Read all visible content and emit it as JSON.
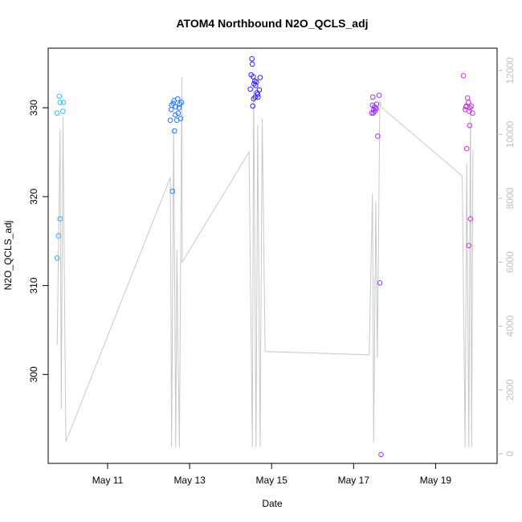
{
  "chart_data": {
    "type": "scatter",
    "title": "ATOM4 Northbound N2O_QCLS_adj",
    "xlabel": "Date",
    "ylabel": "N2O_QCLS_adj",
    "x_ticks": [
      "May 11",
      "May 13",
      "May 15",
      "May 17",
      "May 19"
    ],
    "x_tick_days": [
      11,
      13,
      15,
      17,
      19
    ],
    "xlim_days": [
      9.55,
      20.5
    ],
    "ylim": [
      290,
      336.7
    ],
    "y_ticks": [
      300,
      310,
      320,
      330
    ],
    "y2lim": [
      -300,
      12700
    ],
    "y2_ticks": [
      0,
      2000,
      4000,
      6000,
      8000,
      10000,
      12000
    ],
    "y2_series": {
      "name": "",
      "color": "#c8c8c8",
      "points": [
        [
          9.77,
          3400
        ],
        [
          9.84,
          10150
        ],
        [
          9.87,
          1400
        ],
        [
          9.91,
          10550
        ],
        [
          9.98,
          380
        ],
        [
          12.53,
          8650
        ],
        [
          12.56,
          210
        ],
        [
          12.61,
          10150
        ],
        [
          12.64,
          4700
        ],
        [
          12.66,
          200
        ],
        [
          12.69,
          6400
        ],
        [
          12.72,
          3000
        ],
        [
          12.75,
          200
        ],
        [
          12.79,
          7700
        ],
        [
          12.81,
          11800
        ],
        [
          12.82,
          6000
        ],
        [
          14.45,
          9450
        ],
        [
          14.53,
          200
        ],
        [
          14.56,
          11450
        ],
        [
          14.62,
          200
        ],
        [
          14.66,
          10300
        ],
        [
          14.72,
          200
        ],
        [
          14.77,
          10500
        ],
        [
          14.84,
          3200
        ],
        [
          17.38,
          3100
        ],
        [
          17.46,
          8150
        ],
        [
          17.49,
          350
        ],
        [
          17.54,
          7900
        ],
        [
          17.58,
          3000
        ],
        [
          17.64,
          11050
        ],
        [
          17.68,
          10850
        ],
        [
          19.65,
          8700
        ],
        [
          19.72,
          200
        ],
        [
          19.76,
          9100
        ],
        [
          19.81,
          200
        ],
        [
          19.85,
          11100
        ],
        [
          19.88,
          200
        ],
        [
          19.91,
          9500
        ]
      ]
    },
    "scatter_points": [
      {
        "x": 9.77,
        "y": 329.4,
        "color": "#33bbff"
      },
      {
        "x": 9.84,
        "y": 330.6,
        "color": "#33bbff"
      },
      {
        "x": 9.82,
        "y": 331.3,
        "color": "#33bbff"
      },
      {
        "x": 9.92,
        "y": 330.6,
        "color": "#33bbff"
      },
      {
        "x": 9.91,
        "y": 329.6,
        "color": "#33bbff"
      },
      {
        "x": 9.77,
        "y": 313.1,
        "color": "#33a6ff"
      },
      {
        "x": 9.8,
        "y": 315.6,
        "color": "#33a6ff"
      },
      {
        "x": 9.84,
        "y": 317.5,
        "color": "#33a6ff"
      },
      {
        "x": 12.53,
        "y": 328.6,
        "color": "#2277ff"
      },
      {
        "x": 12.55,
        "y": 329.8,
        "color": "#2277ff"
      },
      {
        "x": 12.56,
        "y": 330.3,
        "color": "#2277ff"
      },
      {
        "x": 12.6,
        "y": 330.5,
        "color": "#2277ff"
      },
      {
        "x": 12.62,
        "y": 330.8,
        "color": "#2277ff"
      },
      {
        "x": 12.63,
        "y": 327.4,
        "color": "#2277ff"
      },
      {
        "x": 12.65,
        "y": 329.2,
        "color": "#2277ff"
      },
      {
        "x": 12.66,
        "y": 330.1,
        "color": "#2277ff"
      },
      {
        "x": 12.69,
        "y": 328.6,
        "color": "#2277ff"
      },
      {
        "x": 12.71,
        "y": 331.0,
        "color": "#2277ff"
      },
      {
        "x": 12.72,
        "y": 329.4,
        "color": "#2277ff"
      },
      {
        "x": 12.74,
        "y": 330.0,
        "color": "#2277ff"
      },
      {
        "x": 12.76,
        "y": 330.4,
        "color": "#2277ff"
      },
      {
        "x": 12.78,
        "y": 328.8,
        "color": "#2277ff"
      },
      {
        "x": 12.8,
        "y": 330.6,
        "color": "#2277ff"
      },
      {
        "x": 12.58,
        "y": 320.6,
        "color": "#2277ff"
      },
      {
        "x": 14.52,
        "y": 335.5,
        "color": "#3322ee"
      },
      {
        "x": 14.53,
        "y": 334.9,
        "color": "#3322ee"
      },
      {
        "x": 14.5,
        "y": 333.7,
        "color": "#3322ee"
      },
      {
        "x": 14.55,
        "y": 333.5,
        "color": "#3322ee"
      },
      {
        "x": 14.48,
        "y": 332.1,
        "color": "#3322ee"
      },
      {
        "x": 14.57,
        "y": 332.7,
        "color": "#3322ee"
      },
      {
        "x": 14.59,
        "y": 333.0,
        "color": "#3322ee"
      },
      {
        "x": 14.61,
        "y": 332.5,
        "color": "#3322ee"
      },
      {
        "x": 14.63,
        "y": 332.9,
        "color": "#3322ee"
      },
      {
        "x": 14.64,
        "y": 331.7,
        "color": "#3322ee"
      },
      {
        "x": 14.56,
        "y": 331.0,
        "color": "#3322ee"
      },
      {
        "x": 14.6,
        "y": 331.2,
        "color": "#3322ee"
      },
      {
        "x": 14.66,
        "y": 331.5,
        "color": "#3322ee"
      },
      {
        "x": 14.7,
        "y": 332.0,
        "color": "#3322ee"
      },
      {
        "x": 14.72,
        "y": 333.4,
        "color": "#3322ee"
      },
      {
        "x": 14.54,
        "y": 330.2,
        "color": "#3322ee"
      },
      {
        "x": 14.67,
        "y": 331.2,
        "color": "#3322ee"
      },
      {
        "x": 17.44,
        "y": 329.4,
        "color": "#9933ee"
      },
      {
        "x": 17.46,
        "y": 330.3,
        "color": "#9933ee"
      },
      {
        "x": 17.47,
        "y": 331.2,
        "color": "#9933ee"
      },
      {
        "x": 17.49,
        "y": 329.8,
        "color": "#9933ee"
      },
      {
        "x": 17.51,
        "y": 330.1,
        "color": "#9933ee"
      },
      {
        "x": 17.52,
        "y": 329.6,
        "color": "#9933ee"
      },
      {
        "x": 17.54,
        "y": 329.9,
        "color": "#9933ee"
      },
      {
        "x": 17.56,
        "y": 330.4,
        "color": "#9933ee"
      },
      {
        "x": 17.48,
        "y": 329.4,
        "color": "#9933ee"
      },
      {
        "x": 17.59,
        "y": 326.8,
        "color": "#9933ee"
      },
      {
        "x": 17.62,
        "y": 331.4,
        "color": "#9933ee"
      },
      {
        "x": 17.64,
        "y": 310.3,
        "color": "#9933ee"
      },
      {
        "x": 17.67,
        "y": 291.0,
        "color": "#9933ee"
      },
      {
        "x": 17.55,
        "y": 329.9,
        "color": "#9933ee"
      },
      {
        "x": 19.68,
        "y": 333.6,
        "color": "#cc33dd"
      },
      {
        "x": 19.72,
        "y": 329.8,
        "color": "#cc33dd"
      },
      {
        "x": 19.75,
        "y": 330.2,
        "color": "#cc33dd"
      },
      {
        "x": 19.78,
        "y": 331.1,
        "color": "#cc33dd"
      },
      {
        "x": 19.8,
        "y": 330.6,
        "color": "#cc33dd"
      },
      {
        "x": 19.82,
        "y": 329.6,
        "color": "#cc33dd"
      },
      {
        "x": 19.84,
        "y": 330.0,
        "color": "#cc33dd"
      },
      {
        "x": 19.87,
        "y": 330.2,
        "color": "#cc33dd"
      },
      {
        "x": 19.9,
        "y": 329.4,
        "color": "#cc33dd"
      },
      {
        "x": 19.83,
        "y": 328.0,
        "color": "#cc33dd"
      },
      {
        "x": 19.76,
        "y": 325.4,
        "color": "#cc33dd"
      },
      {
        "x": 19.85,
        "y": 317.5,
        "color": "#cc33dd"
      },
      {
        "x": 19.81,
        "y": 314.5,
        "color": "#cc33dd"
      },
      {
        "x": 19.74,
        "y": 330.1,
        "color": "#cc33dd"
      }
    ],
    "grid": false,
    "legend": "none"
  }
}
